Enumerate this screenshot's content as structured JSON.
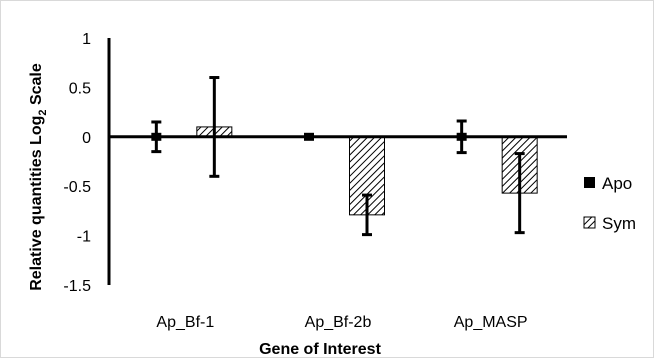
{
  "chart_data": {
    "type": "bar",
    "categories": [
      "Ap_Bf-1",
      "Ap_Bf-2b",
      "Ap_MASP"
    ],
    "series": [
      {
        "name": "Apo",
        "values": [
          0.0,
          0.0,
          0.0
        ],
        "errors": [
          0.15,
          0.02,
          0.16
        ],
        "pattern": "solid"
      },
      {
        "name": "Sym",
        "values": [
          0.1,
          -0.79,
          -0.57
        ],
        "errors": [
          0.5,
          0.2,
          0.4
        ],
        "pattern": "hatched"
      }
    ],
    "ylim": [
      -1.5,
      1
    ],
    "yticks": [
      "1",
      "0.5",
      "0",
      "-0.5",
      "-1",
      "-1.5"
    ],
    "ytick_values": [
      1,
      0.5,
      0,
      -0.5,
      -1,
      -1.5
    ],
    "xlabel": "Gene of Interest",
    "ylabel_main": "Relative quantities Log",
    "ylabel_sub": "2",
    "ylabel_tail": " Scale",
    "legend_position": "right",
    "colors": {
      "apo": "#000000",
      "sym_hatch": "#000000",
      "sym_fill": "#ffffff",
      "axis": "#000000"
    }
  }
}
